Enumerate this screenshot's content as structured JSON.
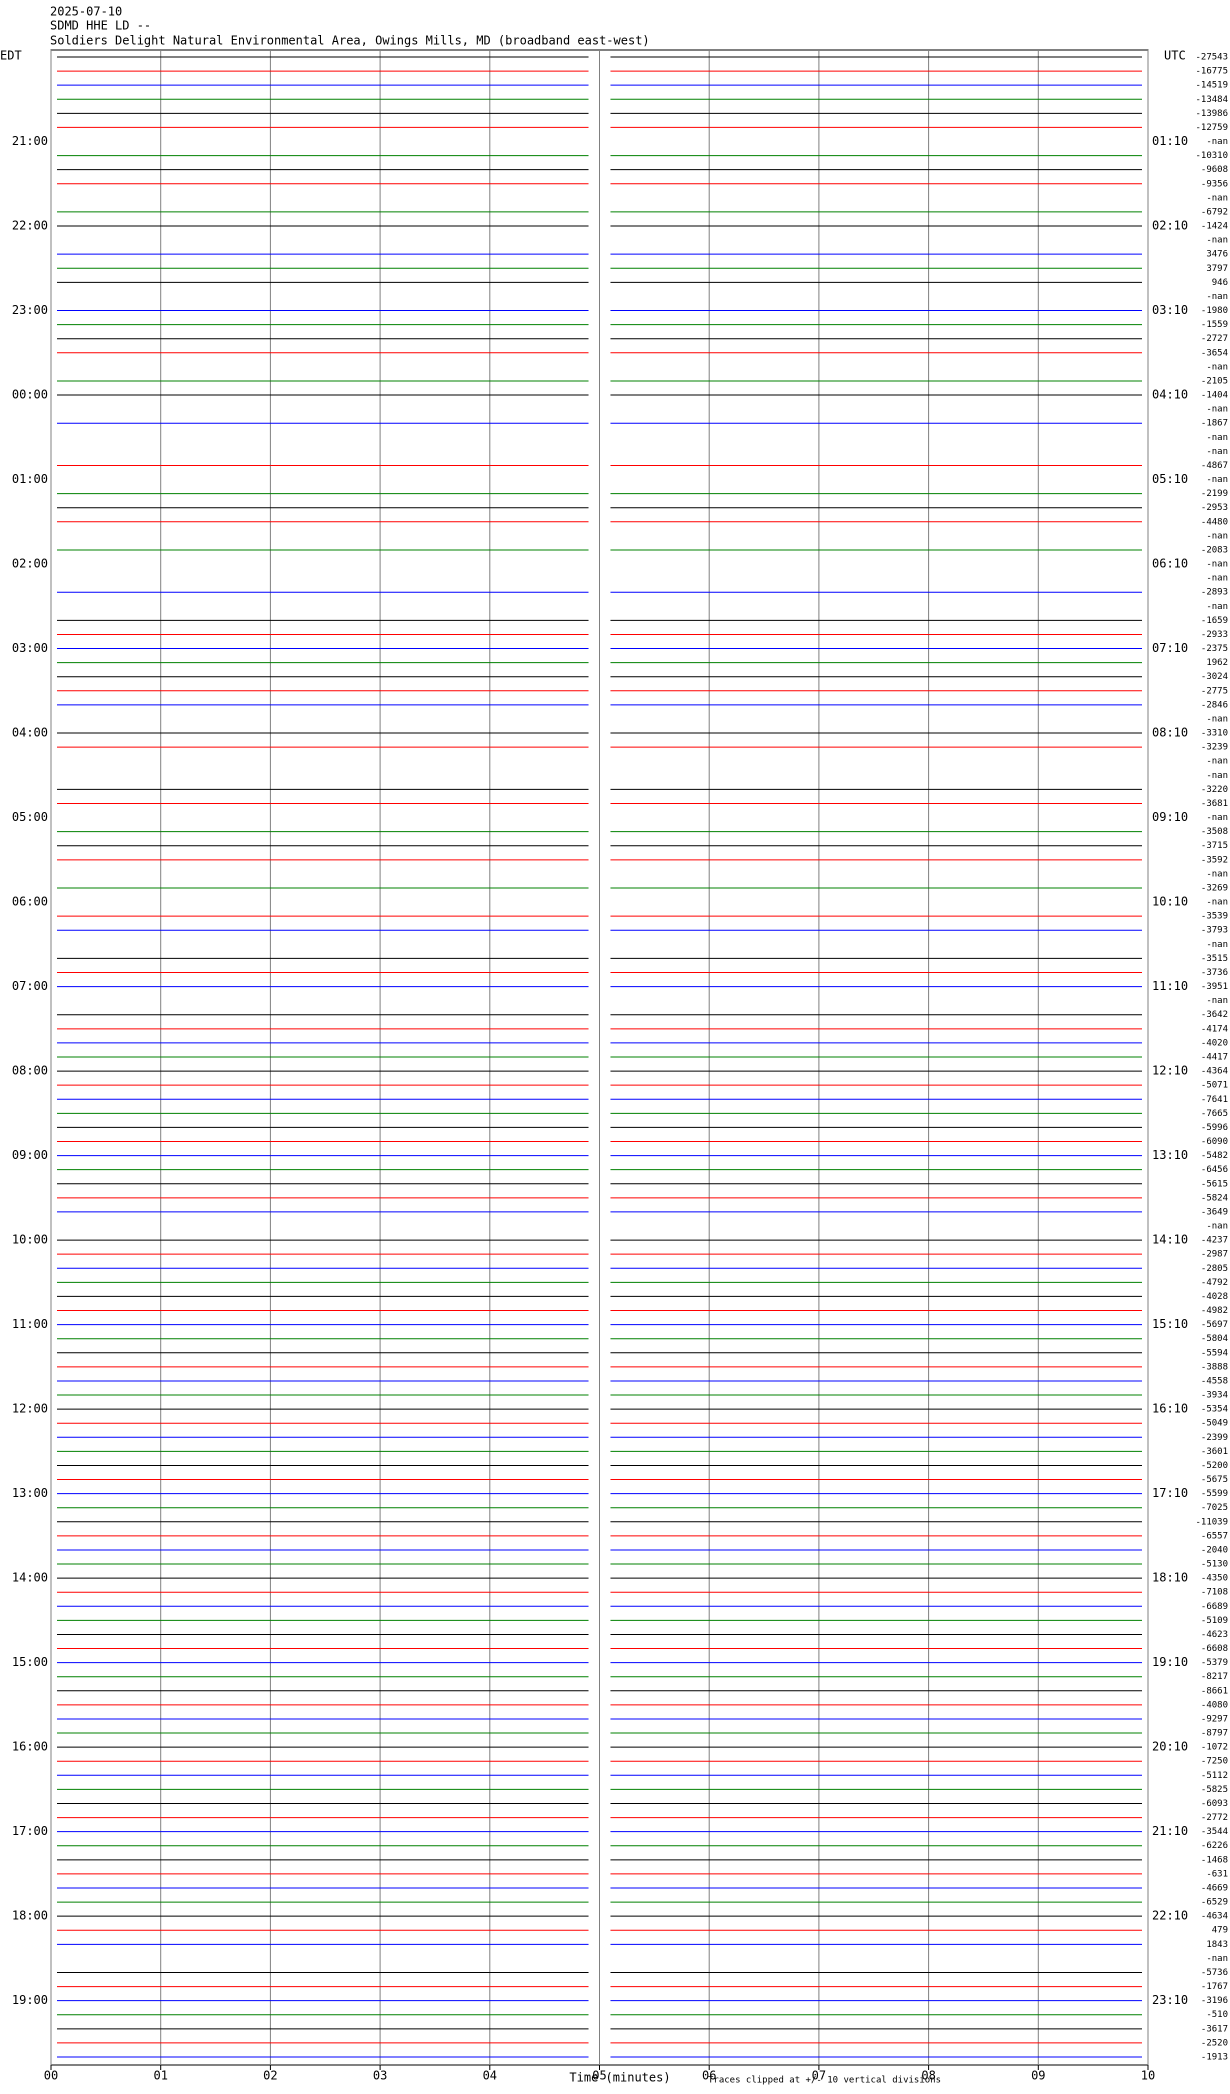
{
  "chart_data": {
    "type": "helicorder",
    "date": "2025-07-10",
    "station": "SDMD HHE LD --",
    "title": "Soldiers Delight Natural Environmental Area, Owings Mills, MD (broadband east-west)",
    "left_axis_label": "EDT",
    "right_axis_label": "UTC",
    "x_label": "Time (minutes)",
    "footnote": "Traces clipped at +/- 10 vertical divisions",
    "xlim": [
      0,
      10
    ],
    "xticks": [
      {
        "value": 0,
        "label": "00"
      },
      {
        "value": 1,
        "label": "01"
      },
      {
        "value": 2,
        "label": "02"
      },
      {
        "value": 3,
        "label": "03"
      },
      {
        "value": 4,
        "label": "04"
      },
      {
        "value": 5,
        "label": "05"
      },
      {
        "value": 6,
        "label": "06"
      },
      {
        "value": 7,
        "label": "07"
      },
      {
        "value": 8,
        "label": "08"
      },
      {
        "value": 9,
        "label": "09"
      },
      {
        "value": 10,
        "label": "10"
      }
    ],
    "grid": true,
    "colors": [
      "#000000",
      "#ff0000",
      "#0000ff",
      "#008000"
    ],
    "edt_labels": [
      "21:00",
      "22:00",
      "23:00",
      "00:00",
      "01:00",
      "02:00",
      "03:00",
      "04:00",
      "05:00",
      "06:00",
      "07:00",
      "08:00",
      "09:00",
      "10:00",
      "11:00",
      "12:00",
      "13:00",
      "14:00",
      "15:00",
      "16:00",
      "17:00",
      "18:00",
      "19:00"
    ],
    "utc_labels": [
      "01:10",
      "02:10",
      "03:10",
      "04:10",
      "05:10",
      "06:10",
      "07:10",
      "08:10",
      "09:10",
      "10:10",
      "11:10",
      "12:10",
      "13:10",
      "14:10",
      "15:10",
      "16:10",
      "17:10",
      "18:10",
      "19:10",
      "20:10",
      "21:10",
      "22:10",
      "23:10"
    ],
    "trace_offsets": [
      "-27543",
      "-16775",
      "-14519",
      "-13484",
      "-13986",
      "-12759",
      "-nan",
      "-10310",
      "-9608",
      "-9356",
      "-nan",
      "-6792",
      "-1424",
      "-nan",
      "3476",
      "3797",
      "946",
      "-nan",
      "-1980",
      "-1559",
      "-2727",
      "-3654",
      "-nan",
      "-2105",
      "-1404",
      "-nan",
      "-1867",
      "-nan",
      "-nan",
      "-4867",
      "-nan",
      "-2199",
      "-2953",
      "-4480",
      "-nan",
      "-2083",
      "-nan",
      "-nan",
      "-2893",
      "-nan",
      "-1659",
      "-2933",
      "-2375",
      "1962",
      "-3024",
      "-2775",
      "-2846",
      "-nan",
      "-3310",
      "-3239",
      "-nan",
      "-nan",
      "-3220",
      "-3681",
      "-nan",
      "-3508",
      "-3715",
      "-3592",
      "-nan",
      "-3269",
      "-nan",
      "-3539",
      "-3793",
      "-nan",
      "-3515",
      "-3736",
      "-3951",
      "-nan",
      "-3642",
      "-4174",
      "-4020",
      "-4417",
      "-4364",
      "-5071",
      "-7641",
      "-7665",
      "-5996",
      "-6090",
      "-5482",
      "-6456",
      "-5615",
      "-5824",
      "-3649",
      "-nan",
      "-4237",
      "-2987",
      "-2805",
      "-4792",
      "-4028",
      "-4982",
      "-5697",
      "-5804",
      "-5594",
      "-3888",
      "-4558",
      "-3934",
      "-5354",
      "-5049",
      "-2399",
      "-3601",
      "-5200",
      "-5675",
      "-5599",
      "-7025",
      "-11039",
      "-6557",
      "-2040",
      "-5130",
      "-4350",
      "-7108",
      "-6689",
      "-5109",
      "-4623",
      "-6608",
      "-5379",
      "-8217",
      "-8661",
      "-4080",
      "-9297",
      "-8797",
      "-1072",
      "-7250",
      "-5112",
      "-5825",
      "-6093",
      "-2772",
      "-3544",
      "-6226",
      "-1468",
      "-631",
      "-4669",
      "-6529",
      "-4634",
      "479",
      "1843",
      "-nan",
      "-5736",
      "-1767",
      "-3196",
      "-510",
      "-3617",
      "-2520",
      "-1913"
    ]
  }
}
